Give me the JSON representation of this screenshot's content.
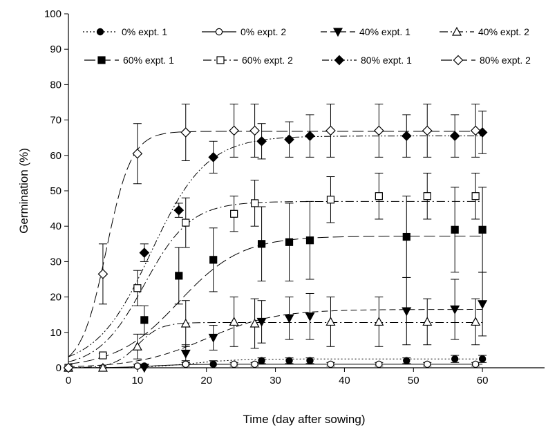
{
  "chart_data": {
    "type": "scatter",
    "title": "",
    "xlabel": "Time (day after sowing)",
    "ylabel": "Germination (%)",
    "xlim": [
      0,
      69
    ],
    "ylim": [
      0,
      100
    ],
    "x_ticks": [
      0,
      10,
      20,
      30,
      40,
      50,
      60
    ],
    "y_ticks": [
      0,
      10,
      20,
      30,
      40,
      50,
      60,
      70,
      80,
      90,
      100
    ],
    "grid": false,
    "legend_position": "top",
    "error_bars": true,
    "fitted_curves": true,
    "series": [
      {
        "name": "0% expt. 1",
        "marker": "circle",
        "fill": "filled",
        "line": "dotted",
        "x": [
          0,
          11,
          17,
          21,
          28,
          32,
          35,
          49,
          56,
          60
        ],
        "y": [
          0,
          0.5,
          1,
          1,
          2,
          2,
          2,
          2,
          2.5,
          2.5
        ],
        "err": [
          0,
          0.5,
          1,
          1,
          0.8,
          0.8,
          0.8,
          0.8,
          1,
          1
        ],
        "fit": {
          "a": 2.5,
          "b": 0.3,
          "x0": 18
        }
      },
      {
        "name": "0% expt. 2",
        "marker": "circle",
        "fill": "open",
        "line": "solid",
        "x": [
          0,
          5,
          10,
          17,
          24,
          27,
          38,
          45,
          52,
          59
        ],
        "y": [
          0,
          0,
          0.5,
          1,
          1,
          1,
          1,
          1,
          1,
          1
        ],
        "err": [
          0,
          0,
          0.5,
          0.5,
          0.5,
          0.5,
          0.5,
          0.5,
          0.5,
          0.5
        ],
        "fit": {
          "a": 1,
          "b": 0.4,
          "x0": 12
        }
      },
      {
        "name": "40% expt. 1",
        "marker": "triangle-down",
        "fill": "filled",
        "line": "dash",
        "x": [
          11,
          17,
          21,
          28,
          32,
          35,
          49,
          56,
          60
        ],
        "y": [
          0,
          4,
          8.5,
          13,
          14,
          14.5,
          16,
          16.5,
          18
        ],
        "err": [
          0,
          2.5,
          3.5,
          6,
          6,
          6.5,
          9.5,
          8.5,
          9
        ],
        "fit": {
          "a": 16.5,
          "b": 0.2,
          "x0": 20
        }
      },
      {
        "name": "40% expt. 2",
        "marker": "triangle-up",
        "fill": "open",
        "line": "dash-dot",
        "x": [
          0,
          5,
          10,
          17,
          24,
          27,
          38,
          45,
          52,
          59
        ],
        "y": [
          0,
          0,
          6,
          12.5,
          13,
          12.5,
          13,
          13,
          13,
          13
        ],
        "err": [
          0,
          0,
          3.5,
          6.5,
          7,
          7,
          7,
          7,
          6.5,
          6.5
        ],
        "fit": {
          "a": 12.8,
          "b": 0.6,
          "x0": 10
        }
      },
      {
        "name": "60% expt. 1",
        "marker": "square",
        "fill": "filled",
        "line": "long-dash",
        "x": [
          11,
          16,
          21,
          28,
          32,
          35,
          49,
          56,
          60
        ],
        "y": [
          13.5,
          26,
          30.5,
          35,
          35.5,
          36,
          37,
          39,
          39
        ],
        "err": [
          4,
          8,
          9,
          10.5,
          11,
          11,
          11.5,
          12,
          12
        ],
        "fit": {
          "a": 37.2,
          "b": 0.22,
          "x0": 16
        }
      },
      {
        "name": "60% expt. 2",
        "marker": "square",
        "fill": "open",
        "line": "dash-dot",
        "x": [
          0,
          5,
          10,
          17,
          24,
          27,
          38,
          45,
          52,
          59
        ],
        "y": [
          0,
          3.5,
          22.5,
          41,
          43.5,
          46.5,
          47.5,
          48.5,
          48.5,
          48.5
        ],
        "err": [
          0,
          0.5,
          5,
          7,
          5,
          6.5,
          6.5,
          6.5,
          6.5,
          6.5
        ],
        "fit": {
          "a": 47,
          "b": 0.3,
          "x0": 11
        }
      },
      {
        "name": "80% expt. 1",
        "marker": "diamond",
        "fill": "filled",
        "line": "dash-dot-dot",
        "x": [
          11,
          16,
          21,
          28,
          32,
          35,
          49,
          56,
          60
        ],
        "y": [
          32.5,
          44.5,
          59.5,
          64,
          64.5,
          65.5,
          65.5,
          65.5,
          66.5
        ],
        "err": [
          2.5,
          2,
          4.5,
          5,
          5,
          6,
          6,
          6,
          6
        ],
        "fit": {
          "a": 65.5,
          "b": 0.25,
          "x0": 12
        }
      },
      {
        "name": "80% expt. 2",
        "marker": "diamond",
        "fill": "open",
        "line": "long-dash",
        "x": [
          0,
          5,
          10,
          17,
          24,
          27,
          38,
          45,
          52,
          59
        ],
        "y": [
          0,
          26.5,
          60.5,
          66.5,
          67,
          67,
          67,
          67,
          67,
          67
        ],
        "err": [
          0,
          8.5,
          8.5,
          8,
          7.5,
          7.5,
          7.5,
          7.5,
          7.5,
          7.5
        ],
        "fit": {
          "a": 66.8,
          "b": 0.55,
          "x0": 5.5
        }
      }
    ]
  }
}
